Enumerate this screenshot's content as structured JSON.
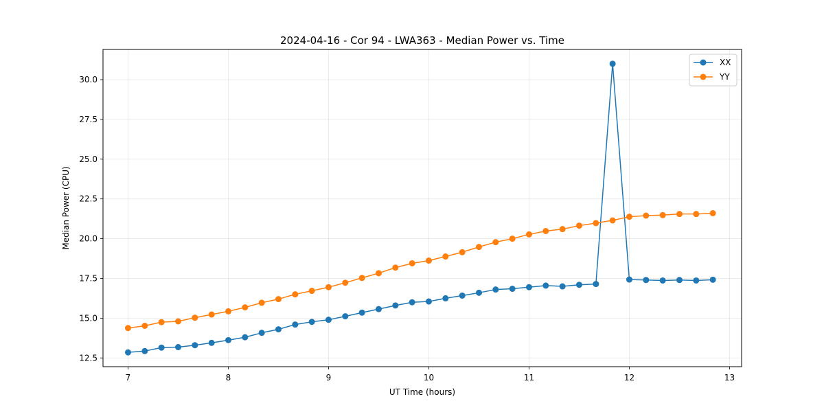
{
  "chart_data": {
    "type": "line",
    "title": "2024-04-16 - Cor 94 - LWA363 - Median Power vs. Time",
    "xlabel": "UT Time (hours)",
    "ylabel": "Median Power (CPU)",
    "xlim": [
      6.75,
      13.12
    ],
    "ylim": [
      11.95,
      31.9
    ],
    "xticks": [
      7,
      8,
      9,
      10,
      11,
      12,
      13
    ],
    "xtick_labels": [
      "7",
      "8",
      "9",
      "10",
      "11",
      "12",
      "13"
    ],
    "yticks": [
      12.5,
      15.0,
      17.5,
      20.0,
      22.5,
      25.0,
      27.5,
      30.0
    ],
    "ytick_labels": [
      "12.5",
      "15.0",
      "17.5",
      "20.0",
      "22.5",
      "25.0",
      "27.5",
      "30.0"
    ],
    "grid": true,
    "legend_position": "top-right",
    "x": [
      7.0,
      7.1667,
      7.3333,
      7.5,
      7.6667,
      7.8333,
      8.0,
      8.1667,
      8.3333,
      8.5,
      8.6667,
      8.8333,
      9.0,
      9.1667,
      9.3333,
      9.5,
      9.6667,
      9.8333,
      10.0,
      10.1667,
      10.3333,
      10.5,
      10.6667,
      10.8333,
      11.0,
      11.1667,
      11.3333,
      11.5,
      11.6667,
      11.8333,
      12.0,
      12.1667,
      12.3333,
      12.5,
      12.6667,
      12.8333
    ],
    "series": [
      {
        "name": "XX",
        "color": "#1f77b4",
        "values": [
          12.85,
          12.93,
          13.15,
          13.18,
          13.3,
          13.45,
          13.62,
          13.8,
          14.08,
          14.3,
          14.6,
          14.77,
          14.9,
          15.12,
          15.35,
          15.57,
          15.8,
          16.0,
          16.05,
          16.25,
          16.42,
          16.6,
          16.8,
          16.85,
          16.95,
          17.05,
          17.0,
          17.1,
          17.15,
          31.0,
          17.43,
          17.4,
          17.37,
          17.4,
          17.37,
          17.42
        ]
      },
      {
        "name": "YY",
        "color": "#ff7f0e",
        "values": [
          14.38,
          14.52,
          14.75,
          14.8,
          15.03,
          15.23,
          15.43,
          15.68,
          15.97,
          16.2,
          16.5,
          16.72,
          16.95,
          17.23,
          17.53,
          17.83,
          18.18,
          18.45,
          18.62,
          18.88,
          19.15,
          19.48,
          19.78,
          20.0,
          20.27,
          20.48,
          20.6,
          20.82,
          20.98,
          21.15,
          21.38,
          21.45,
          21.48,
          21.55,
          21.55,
          21.6
        ]
      }
    ]
  }
}
